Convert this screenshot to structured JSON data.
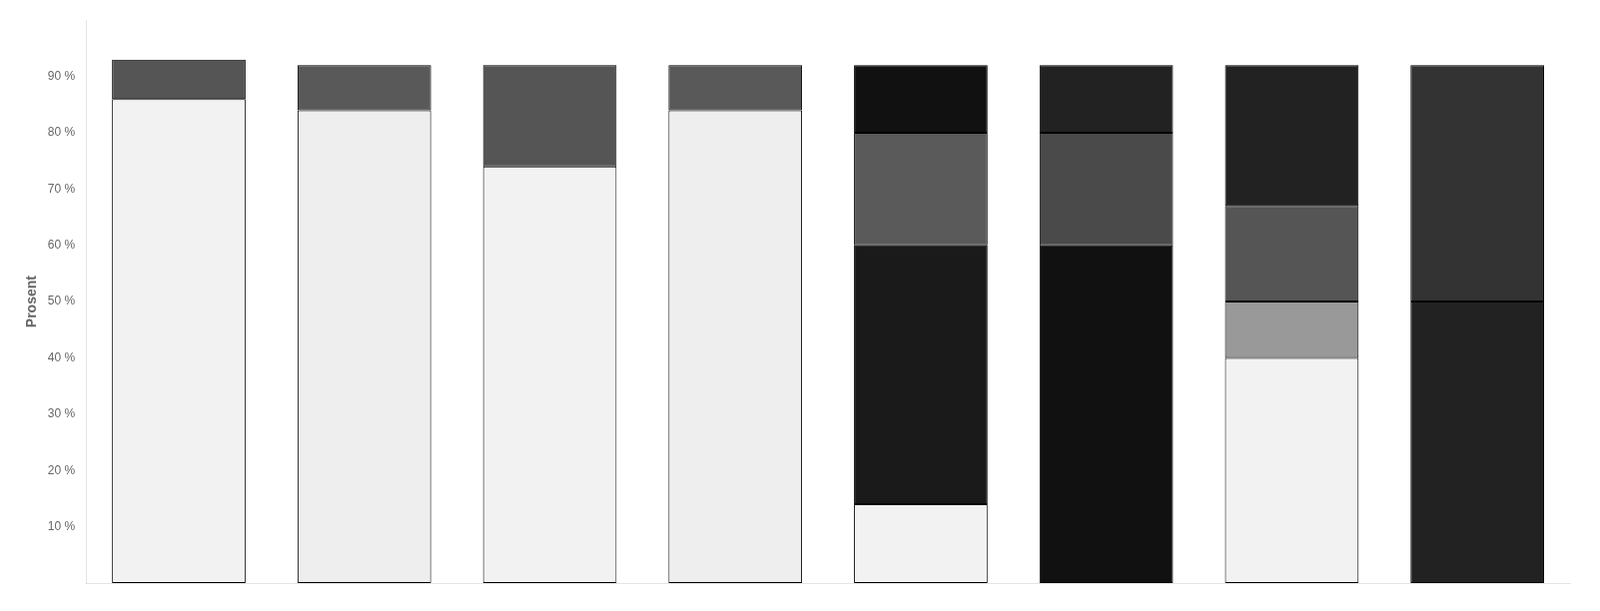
{
  "chart_data": {
    "type": "bar",
    "stacked": true,
    "ylabel": "Prosent",
    "categories": [
      null,
      null,
      null,
      null,
      null,
      null,
      null,
      null
    ],
    "series": [
      {
        "values": [
          86,
          84,
          74,
          84,
          14,
          60,
          40,
          50
        ],
        "colors": [
          "#f2f2f2",
          "#eeeeee",
          "#f2f2f2",
          "#eeeeee",
          "#f2f2f2",
          "#111111",
          "#f2f2f2",
          "#222222"
        ]
      },
      {
        "values": [
          7,
          8,
          18,
          8,
          46,
          20,
          10,
          42
        ],
        "colors": [
          "#555555",
          "#595959",
          "#555555",
          "#595959",
          "#1a1a1a",
          "#4a4a4a",
          "#999999",
          "#333333"
        ]
      },
      {
        "values": [
          null,
          null,
          null,
          null,
          20,
          12,
          17,
          null
        ],
        "colors": [
          null,
          null,
          null,
          null,
          "#5a5a5a",
          "#222222",
          "#555555",
          null
        ]
      },
      {
        "values": [
          null,
          null,
          null,
          null,
          12,
          null,
          25,
          null
        ],
        "colors": [
          null,
          null,
          null,
          null,
          "#111111",
          null,
          "#222222",
          null
        ]
      }
    ],
    "ylim": [
      0,
      100
    ],
    "yticks": [
      {
        "value": 10,
        "label": "10 %"
      },
      {
        "value": 20,
        "label": "20 %"
      },
      {
        "value": 30,
        "label": "30 %"
      },
      {
        "value": 40,
        "label": "40 %"
      },
      {
        "value": 50,
        "label": "50 %"
      },
      {
        "value": 60,
        "label": "60 %"
      },
      {
        "value": 70,
        "label": "70 %"
      },
      {
        "value": 80,
        "label": "80 %"
      },
      {
        "value": 90,
        "label": "90 %"
      }
    ],
    "grid": false,
    "tick_labels": "y"
  }
}
